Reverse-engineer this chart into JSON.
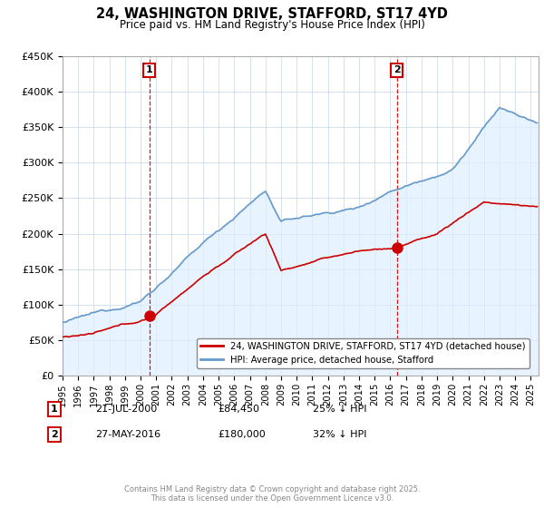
{
  "title": "24, WASHINGTON DRIVE, STAFFORD, ST17 4YD",
  "subtitle": "Price paid vs. HM Land Registry's House Price Index (HPI)",
  "ylim": [
    0,
    450000
  ],
  "xlim_start": 1995.0,
  "xlim_end": 2025.5,
  "marker1_x": 2000.55,
  "marker1_y": 84450,
  "marker1_label": "1",
  "marker1_date": "21-JUL-2000",
  "marker1_price": "£84,450",
  "marker1_hpi": "25% ↓ HPI",
  "marker2_x": 2016.41,
  "marker2_y": 180000,
  "marker2_label": "2",
  "marker2_date": "27-MAY-2016",
  "marker2_price": "£180,000",
  "marker2_hpi": "32% ↓ HPI",
  "red_line_color": "#cc0000",
  "blue_line_color": "#6699cc",
  "blue_fill_color": "#ddeeff",
  "marker_line_color": "#cc0000",
  "legend_label_red": "24, WASHINGTON DRIVE, STAFFORD, ST17 4YD (detached house)",
  "legend_label_blue": "HPI: Average price, detached house, Stafford",
  "footer": "Contains HM Land Registry data © Crown copyright and database right 2025.\nThis data is licensed under the Open Government Licence v3.0.",
  "background_color": "#ffffff",
  "grid_color": "#ccddee"
}
